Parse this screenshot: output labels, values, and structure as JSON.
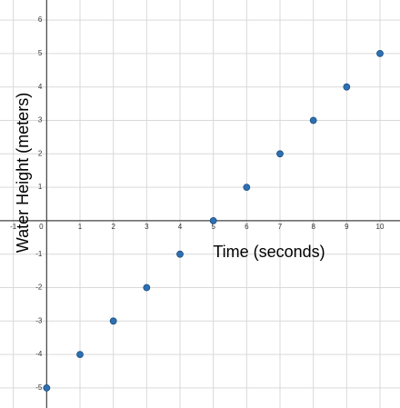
{
  "chart_data": {
    "type": "scatter",
    "x_label": "Time (seconds)",
    "y_label": "Water Height (meters)",
    "series": [
      {
        "color": "#2d70b3",
        "x": [
          0,
          1,
          2,
          3,
          4,
          5,
          6,
          7,
          8,
          9,
          10
        ],
        "values": [
          -5,
          -4,
          -3,
          -2,
          -1,
          0,
          1,
          2,
          3,
          4,
          5
        ]
      }
    ],
    "xlim": [
      -1.4,
      10.6
    ],
    "ylim": [
      -5.6,
      6.6
    ],
    "xticks": [
      -1,
      0,
      1,
      2,
      3,
      4,
      5,
      6,
      7,
      8,
      9,
      10
    ],
    "yticks": [
      -5,
      -4,
      -3,
      -2,
      -1,
      1,
      2,
      3,
      4,
      5,
      6
    ],
    "grid": true
  }
}
